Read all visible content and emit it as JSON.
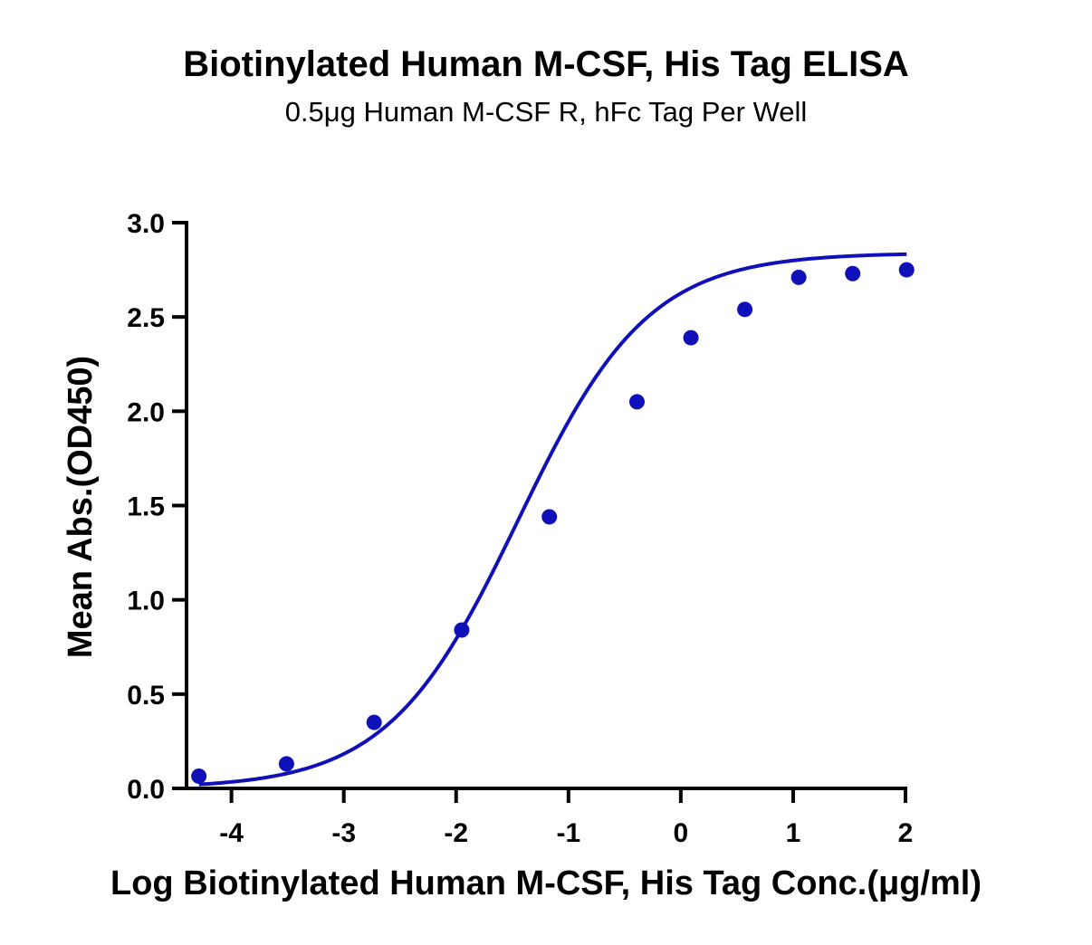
{
  "chart_data": {
    "type": "scatter",
    "title": "Biotinylated Human M-CSF, His Tag ELISA",
    "subtitle": "0.5μg Human M-CSF R, hFc Tag Per Well",
    "xlabel": "Log Biotinylated Human M-CSF, His Tag Conc.(μg/ml)",
    "ylabel": "Mean Abs.(OD450)",
    "xlim": [
      -4.4,
      2
    ],
    "ylim": [
      0,
      3
    ],
    "x_ticks": [
      -4,
      -3,
      -2,
      -1,
      0,
      1,
      2
    ],
    "x_tick_labels": [
      "-4",
      "-3",
      "-2",
      "-1",
      "0",
      "1",
      "2"
    ],
    "y_ticks": [
      0,
      0.5,
      1,
      1.5,
      2,
      2.5,
      3
    ],
    "y_tick_labels": [
      "0.0",
      "0.5",
      "1.0",
      "1.5",
      "2.0",
      "2.5",
      "3.0"
    ],
    "grid": false,
    "legend": "none",
    "series_color": "#1010b8",
    "points": [
      {
        "x": -4.29,
        "y": 0.065
      },
      {
        "x": -3.51,
        "y": 0.13
      },
      {
        "x": -2.73,
        "y": 0.35
      },
      {
        "x": -1.95,
        "y": 0.84
      },
      {
        "x": -1.17,
        "y": 1.44
      },
      {
        "x": -0.39,
        "y": 2.05
      },
      {
        "x": 0.09,
        "y": 2.39
      },
      {
        "x": 0.57,
        "y": 2.54
      },
      {
        "x": 1.05,
        "y": 2.71
      },
      {
        "x": 1.53,
        "y": 2.73
      },
      {
        "x": 2.01,
        "y": 2.75
      }
    ],
    "fit_curve": {
      "model": "4PL",
      "bottom": 0.0,
      "top": 2.84,
      "logEC50": -1.45,
      "hill": 0.75
    }
  }
}
